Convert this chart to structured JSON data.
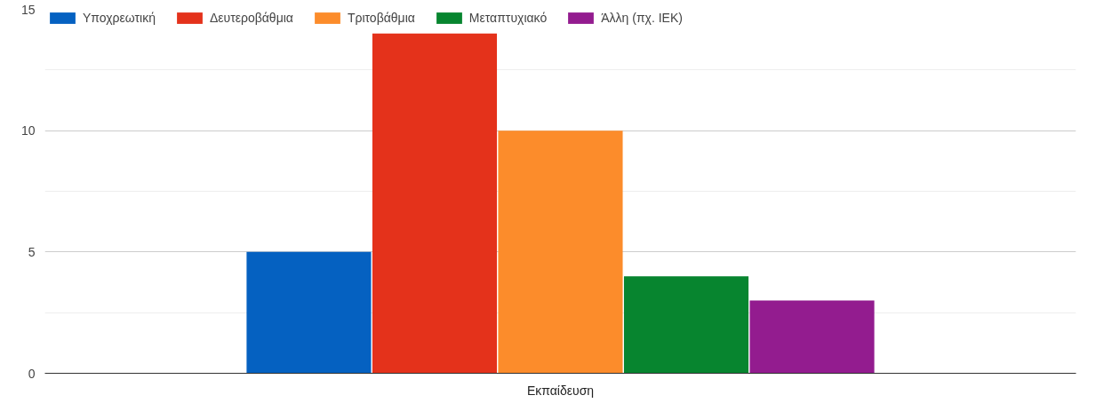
{
  "chart_data": {
    "type": "bar",
    "categories": [
      "Εκπαίδευση"
    ],
    "series": [
      {
        "name": "Υποχρεωτική",
        "color": "#0561c1",
        "values": [
          5
        ]
      },
      {
        "name": "Δευτεροβάθμια",
        "color": "#e4321b",
        "values": [
          14
        ]
      },
      {
        "name": "Τριτοβάθμια",
        "color": "#fc8c2b",
        "values": [
          10
        ]
      },
      {
        "name": "Μεταπτυχιακό",
        "color": "#07852f",
        "values": [
          4
        ]
      },
      {
        "name": "Άλλη (πχ. ΙΕΚ)",
        "color": "#931c8f",
        "values": [
          3
        ]
      }
    ],
    "ylim": [
      0,
      15
    ],
    "yticks": [
      0,
      {
        "value": 2.5,
        "label": null
      },
      5,
      {
        "value": 7.5,
        "label": null
      },
      10,
      {
        "value": 12.5,
        "label": null
      },
      15
    ],
    "grid": "y",
    "legend": "top"
  }
}
